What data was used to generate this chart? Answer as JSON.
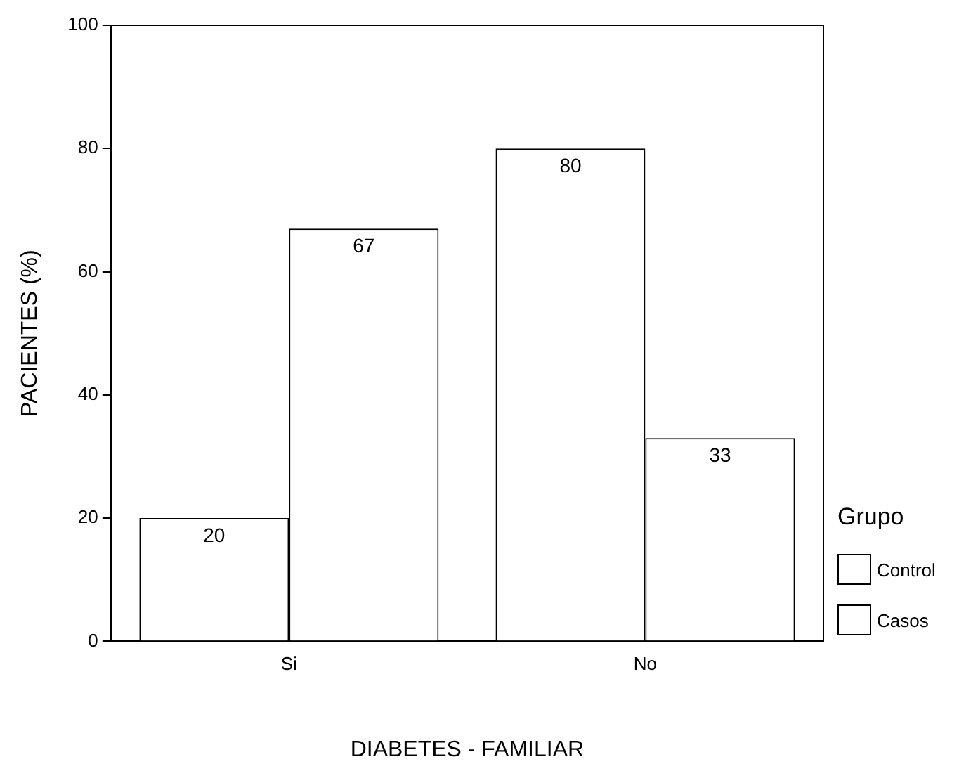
{
  "chart_data": {
    "type": "bar",
    "xlabel": "DIABETES - FAMILIAR",
    "ylabel": "PACIENTES (%)",
    "categories": [
      "Si",
      "No"
    ],
    "series": [
      {
        "name": "Control",
        "color": "#ffffff",
        "values": [
          20,
          80
        ]
      },
      {
        "name": "Casos",
        "color": "#ffffff",
        "values": [
          67,
          33
        ]
      }
    ],
    "ylim": [
      0,
      100
    ],
    "yticks": [
      0,
      20,
      40,
      60,
      80,
      100
    ],
    "legend": "right",
    "legend_title": "Grupo",
    "data_labels": true
  }
}
